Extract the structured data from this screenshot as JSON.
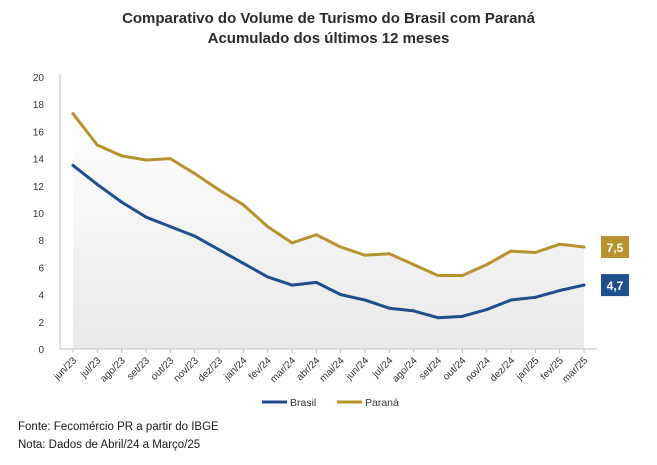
{
  "header": {
    "title_line1": "Comparativo do Volume de Turismo do Brasil com Paraná",
    "title_line2": "Acumulado dos últimos 12 meses"
  },
  "footer": {
    "source": "Fonte: Fecomércio PR a partir do IBGE",
    "note": "Nota: Dados de Abril/24 a Março/25"
  },
  "colors": {
    "brasil": "#1F4E8C",
    "parana": "#B8922E",
    "area_fill": "#ECECEC",
    "axis": "#BFBFBF"
  },
  "chart_data": {
    "type": "line",
    "title": "Comparativo do Volume de Turismo do Brasil com Paraná - Acumulado dos últimos 12 meses",
    "xlabel": "",
    "ylabel": "",
    "ylim": [
      0,
      20
    ],
    "yticks": [
      "0",
      "2",
      "4",
      "6",
      "8",
      "10",
      "12",
      "14",
      "16",
      "18",
      "20"
    ],
    "categories": [
      "jun/23",
      "jul/23",
      "ago/23",
      "set/23",
      "out/23",
      "nov/23",
      "dez/23",
      "jan/24",
      "fev/24",
      "mar/24",
      "abr/24",
      "mai/24",
      "jun/24",
      "jul/24",
      "ago/24",
      "set/24",
      "out/24",
      "nov/24",
      "dez/24",
      "jan/25",
      "fev/25",
      "mar/25"
    ],
    "series": [
      {
        "name": "Brasil",
        "values": [
          13.5,
          12.1,
          10.8,
          9.7,
          9.0,
          8.3,
          7.3,
          6.3,
          5.3,
          4.7,
          4.9,
          4.0,
          3.6,
          3.0,
          2.8,
          2.3,
          2.4,
          2.9,
          3.6,
          3.8,
          4.3,
          4.7
        ],
        "end_label": "4,7"
      },
      {
        "name": "Paraná",
        "values": [
          17.3,
          15.0,
          14.2,
          13.9,
          14.0,
          12.9,
          11.7,
          10.6,
          9.0,
          7.8,
          8.4,
          7.5,
          6.9,
          7.0,
          6.2,
          5.4,
          5.4,
          6.2,
          7.2,
          7.1,
          7.7,
          7.5
        ],
        "end_label": "7,5"
      }
    ],
    "legend": {
      "position": "bottom",
      "entries": [
        "Brasil",
        "Paraná"
      ]
    }
  }
}
